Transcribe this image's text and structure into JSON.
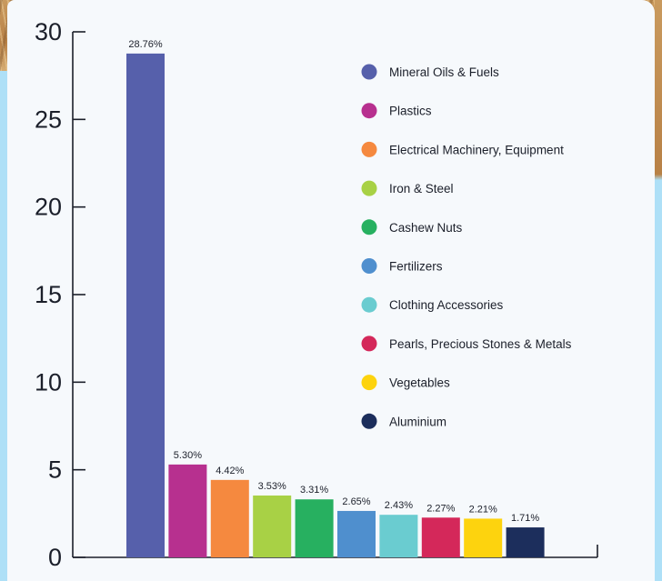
{
  "chart_data": {
    "type": "bar",
    "categories": [
      "Mineral Oils & Fuels",
      "Plastics",
      "Electrical Machinery, Equipment",
      "Iron & Steel",
      "Cashew Nuts",
      "Fertilizers",
      "Clothing Accessories",
      "Pearls, Precious Stones & Metals",
      "Vegetables",
      "Aluminium"
    ],
    "values": [
      28.76,
      5.3,
      4.42,
      3.53,
      3.31,
      2.65,
      2.43,
      2.27,
      2.21,
      1.71
    ],
    "value_labels": [
      "28.76%",
      "5.30%",
      "4.42%",
      "3.53%",
      "3.31%",
      "2.65%",
      "2.43%",
      "2.27%",
      "2.21%",
      "1.71%"
    ],
    "colors": [
      "#5660ab",
      "#b7308f",
      "#f5893f",
      "#a8d145",
      "#27b060",
      "#4f8fce",
      "#6accd0",
      "#d4285a",
      "#fdd30e",
      "#1c2e5c"
    ],
    "title": "",
    "xlabel": "",
    "ylabel": "",
    "ylim": [
      0,
      30
    ],
    "yticks": [
      0,
      5,
      10,
      15,
      20,
      25,
      30
    ],
    "legend_position": "top-right",
    "grid": false
  }
}
